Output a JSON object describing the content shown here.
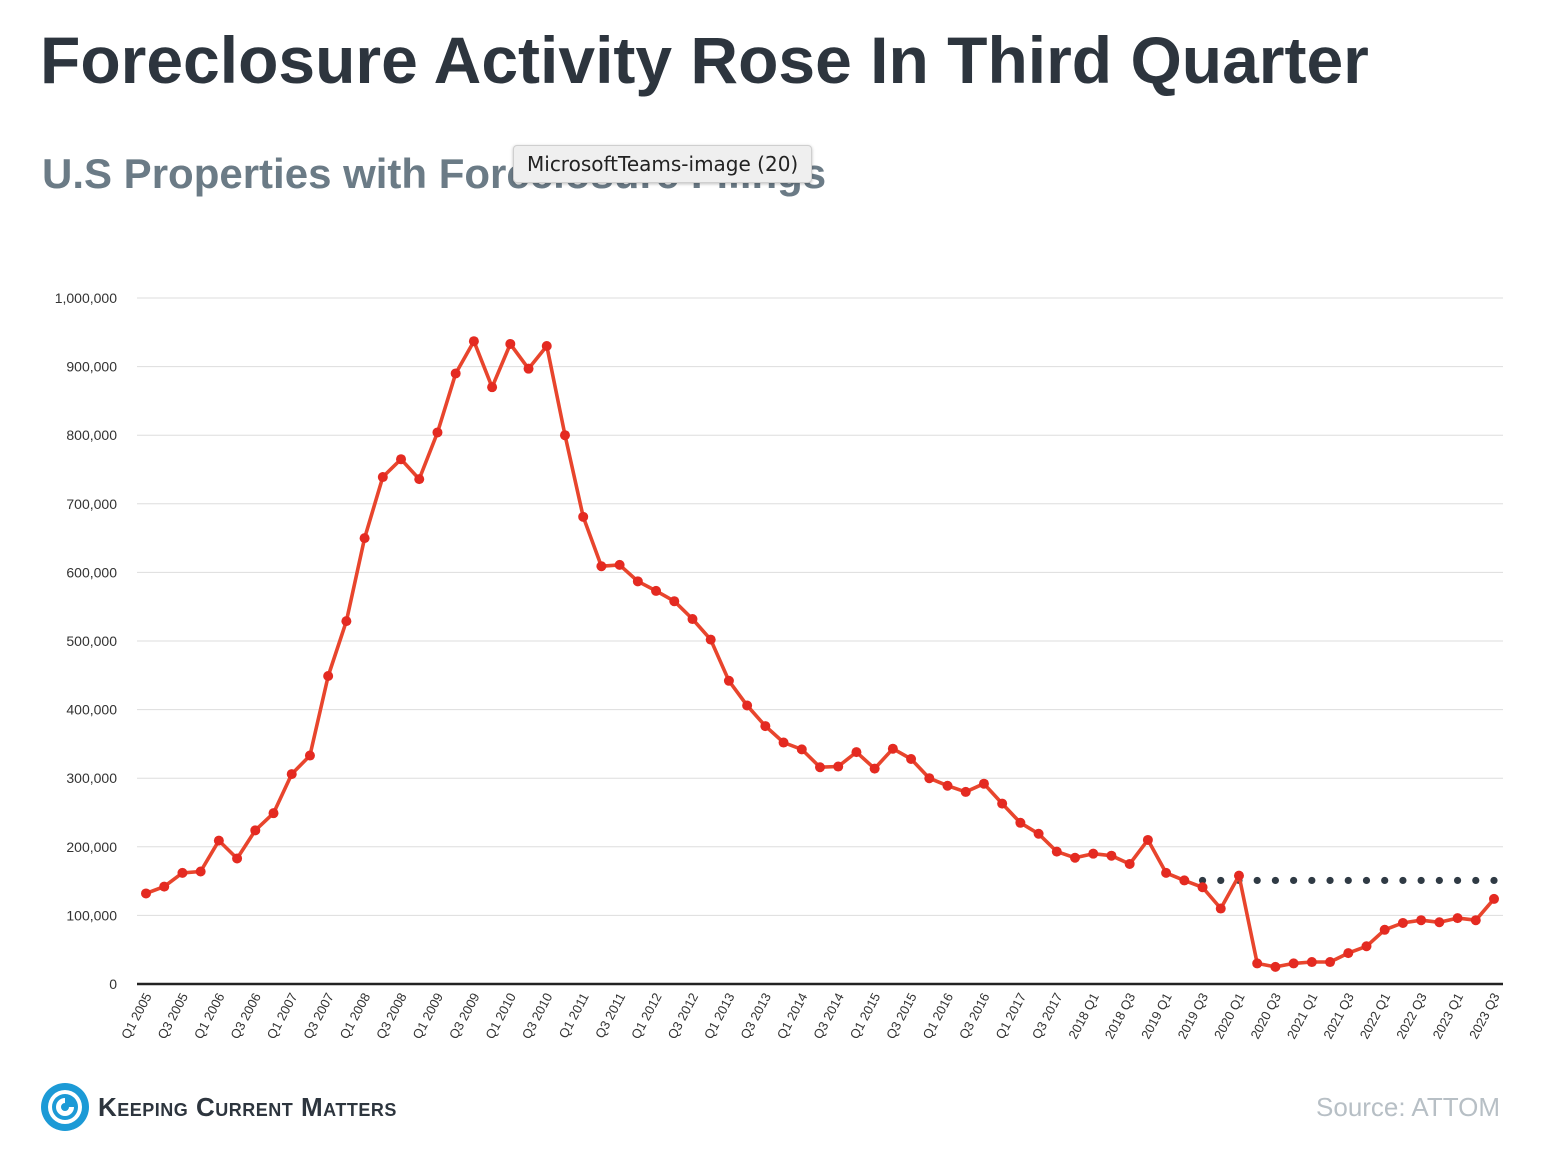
{
  "header": {
    "title": "Foreclosure Activity Rose In Third Quarter",
    "subtitle": "U.S Properties with Foreclosure Filings"
  },
  "tooltip": {
    "text": "MicrosoftTeams-image (20)"
  },
  "footer": {
    "logo_text": "Keeping Current Matters",
    "logo_icon": "swirl-logo-icon",
    "source": "Source: ATTOM"
  },
  "colors": {
    "line": "#e8452d",
    "marker": "#e42a21",
    "reference": "#2f3a44",
    "grid": "#dddddd",
    "axis": "#222222",
    "logo_blue": "#1c9ad6"
  },
  "chart_data": {
    "type": "line",
    "title": "",
    "xlabel": "",
    "ylabel": "",
    "ylim": [
      0,
      1000000
    ],
    "grid": true,
    "y_ticks": [
      0,
      100000,
      200000,
      300000,
      400000,
      500000,
      600000,
      700000,
      800000,
      900000,
      1000000
    ],
    "y_tick_labels": [
      "0",
      "100,000",
      "200,000",
      "300,000",
      "400,000",
      "500,000",
      "600,000",
      "700,000",
      "800,000",
      "900,000",
      "1,000,000"
    ],
    "categories": [
      "Q1 2005",
      "Q2 2005",
      "Q3 2005",
      "Q4 2005",
      "Q1 2006",
      "Q2 2006",
      "Q3 2006",
      "Q4 2006",
      "Q1 2007",
      "Q2 2007",
      "Q3 2007",
      "Q4 2007",
      "Q1 2008",
      "Q2 2008",
      "Q3 2008",
      "Q4 2008",
      "Q1 2009",
      "Q2 2009",
      "Q3 2009",
      "Q4 2009",
      "Q1 2010",
      "Q2 2010",
      "Q3 2010",
      "Q4 2010",
      "Q1 2011",
      "Q2 2011",
      "Q3 2011",
      "Q4 2011",
      "Q1 2012",
      "Q2 2012",
      "Q3 2012",
      "Q4 2012",
      "Q1 2013",
      "Q2 2013",
      "Q3 2013",
      "Q4 2013",
      "Q1 2014",
      "Q2 2014",
      "Q3 2014",
      "Q4 2014",
      "Q1 2015",
      "Q2 2015",
      "Q3 2015",
      "Q4 2015",
      "Q1 2016",
      "Q2 2016",
      "Q3 2016",
      "Q4 2016",
      "Q1 2017",
      "Q2 2017",
      "Q3 2017",
      "Q4 2017",
      "2018 Q1",
      "2018 Q2",
      "2018 Q3",
      "2018 Q4",
      "2019 Q1",
      "2019 Q2",
      "2019 Q3",
      "2019 Q4",
      "2020 Q1",
      "2020 Q2",
      "2020 Q3",
      "2020 Q4",
      "2021 Q1",
      "2021 Q2",
      "2021 Q3",
      "2021 Q4",
      "2022 Q1",
      "2022 Q2",
      "2022 Q3",
      "2022 Q4",
      "2023 Q1",
      "2023 Q2",
      "2023 Q3"
    ],
    "x_tick_labels": [
      "Q1 2005",
      "Q3 2005",
      "Q1 2006",
      "Q3 2006",
      "Q1 2007",
      "Q3 2007",
      "Q1 2008",
      "Q3 2008",
      "Q1 2009",
      "Q3 2009",
      "Q1 2010",
      "Q3 2010",
      "Q1 2011",
      "Q3 2011",
      "Q1 2012",
      "Q3 2012",
      "Q1 2013",
      "Q3 2013",
      "Q1 2014",
      "Q3 2014",
      "Q1 2015",
      "Q3 2015",
      "Q1 2016",
      "Q3 2016",
      "Q1 2017",
      "Q3 2017",
      "2018 Q1",
      "2018 Q3",
      "2019 Q1",
      "2019 Q3",
      "2020 Q1",
      "2020 Q3",
      "2021 Q1",
      "2021 Q3",
      "2022 Q1",
      "2022 Q3",
      "2023 Q1",
      "2023 Q3"
    ],
    "series": [
      {
        "values": [
          132000,
          142000,
          162000,
          164000,
          209000,
          183000,
          224000,
          249000,
          306000,
          333000,
          449000,
          529000,
          650000,
          739000,
          765000,
          736000,
          804000,
          890000,
          937000,
          870000,
          933000,
          897000,
          930000,
          800000,
          681000,
          609000,
          611000,
          587000,
          573000,
          558000,
          532000,
          502000,
          442000,
          406000,
          376000,
          352000,
          342000,
          316000,
          317000,
          338000,
          314000,
          343000,
          328000,
          300000,
          289000,
          280000,
          292000,
          263000,
          235000,
          219000,
          193000,
          184000,
          190000,
          187000,
          175000,
          210000,
          162000,
          151000,
          141000,
          110000,
          158000,
          30000,
          25000,
          30000,
          32000,
          32000,
          45000,
          55000,
          79000,
          89000,
          93000,
          90000,
          96000,
          93000,
          124000
        ]
      }
    ],
    "reference_line": {
      "value": 151000,
      "start_category": "2019 Q3",
      "end_category": "2023 Q3",
      "style": "dotted"
    }
  }
}
